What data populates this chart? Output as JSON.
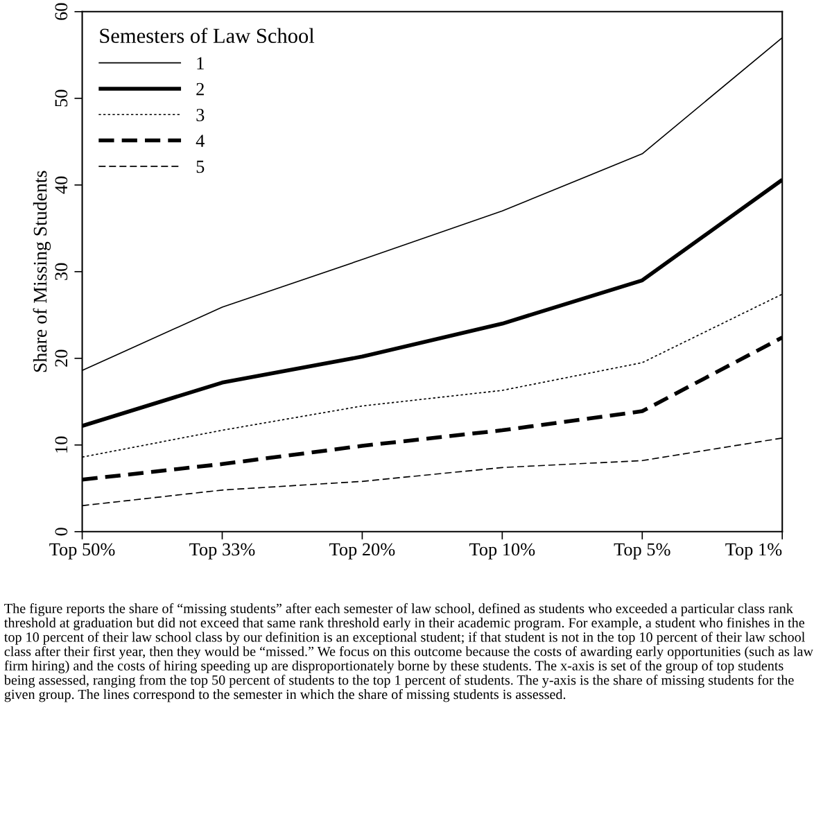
{
  "chart_data": {
    "type": "line",
    "ylabel": "Share of Missing Students",
    "legend_title": "Semesters of Law School",
    "legend": "top left",
    "grid": false,
    "categories": [
      "Top 50%",
      "Top 33%",
      "Top 20%",
      "Top 10%",
      "Top 5%",
      "Top 1%"
    ],
    "ylim": [
      0,
      60
    ],
    "yticks": [
      0,
      10,
      20,
      30,
      40,
      50,
      60
    ],
    "series": [
      {
        "name": "1",
        "color": "#000000",
        "line_style": "solid",
        "values": [
          18.6,
          25.9,
          31.4,
          37.0,
          43.6,
          57.0
        ]
      },
      {
        "name": "2",
        "color": "#000000",
        "line_style": "solid",
        "values": [
          12.2,
          17.2,
          20.2,
          24.0,
          29.0,
          40.6
        ]
      },
      {
        "name": "3",
        "color": "#000000",
        "line_style": "dotted",
        "values": [
          8.6,
          11.7,
          14.5,
          16.3,
          19.5,
          27.4
        ]
      },
      {
        "name": "4",
        "color": "#000000",
        "line_style": "dashed",
        "values": [
          6.0,
          7.8,
          9.9,
          11.7,
          13.9,
          22.4
        ]
      },
      {
        "name": "5",
        "color": "#000000",
        "line_style": "dashed",
        "values": [
          3.0,
          4.8,
          5.8,
          7.4,
          8.2,
          10.8
        ]
      }
    ],
    "annotations": [
      "The figure reports the share of “missing students” after each semester of law school, defined as students who exceeded a particular class rank threshold at graduation but did not exceed that same rank threshold early in their academic program. For example, a student who finishes in the top 10 percent of their law school class by our definition is an exceptional student; if that student is not in the top 10 percent of their law school class after their first year, then they would be “missed.” We focus on this outcome because the costs of awarding early opportunities (such as law firm hiring) and the costs of hiring speeding up are disproportionately borne by these students. The x-axis is set of the group of top students being assessed, ranging from the top 50 percent of students to the top 1 percent of students. The y-axis is the share of missing students for the given group. The lines correspond to the semester in which the share of missing students is assessed."
    ]
  }
}
